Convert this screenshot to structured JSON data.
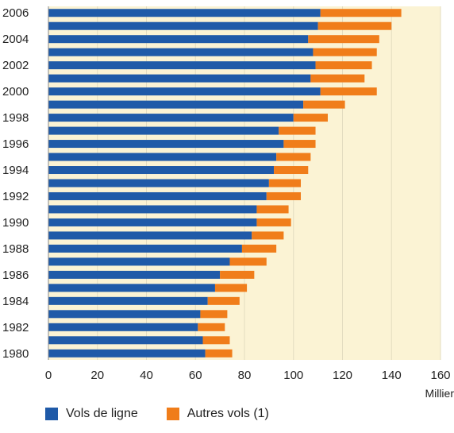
{
  "chart_data": {
    "type": "bar",
    "orientation": "horizontal",
    "stacked": true,
    "xlabel": "Millier",
    "xlim": [
      0,
      160
    ],
    "xticks": [
      0,
      20,
      40,
      60,
      80,
      100,
      120,
      140,
      160
    ],
    "grid": true,
    "legend_position": "bottom",
    "categories": [
      "2006",
      "2005",
      "2004",
      "2003",
      "2002",
      "2001",
      "2000",
      "1999",
      "1998",
      "1997",
      "1996",
      "1995",
      "1994",
      "1993",
      "1992",
      "1991",
      "1990",
      "1989",
      "1988",
      "1987",
      "1986",
      "1985",
      "1984",
      "1983",
      "1982",
      "1981",
      "1980"
    ],
    "ytick_labels": [
      "2006",
      "",
      "2004",
      "",
      "2002",
      "",
      "2000",
      "",
      "1998",
      "",
      "1996",
      "",
      "1994",
      "",
      "1992",
      "",
      "1990",
      "",
      "1988",
      "",
      "1986",
      "",
      "1984",
      "",
      "1982",
      "",
      "1980"
    ],
    "series": [
      {
        "name": "Vols de ligne",
        "color": "#1f5aa8",
        "values": [
          111,
          110,
          106,
          108,
          109,
          107,
          111,
          104,
          100,
          94,
          96,
          93,
          92,
          90,
          89,
          85,
          85,
          83,
          79,
          74,
          70,
          68,
          65,
          62,
          61,
          63,
          64
        ]
      },
      {
        "name": "Autres vols (1)",
        "color": "#f07d1a",
        "values": [
          33,
          30,
          29,
          26,
          23,
          22,
          23,
          17,
          14,
          15,
          13,
          14,
          14,
          13,
          14,
          13,
          14,
          13,
          14,
          15,
          14,
          13,
          13,
          11,
          11,
          11,
          11
        ]
      }
    ]
  }
}
